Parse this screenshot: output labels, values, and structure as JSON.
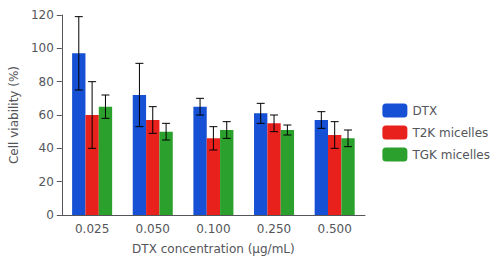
{
  "chart_data": {
    "type": "bar",
    "categories": [
      "0.025",
      "0.050",
      "0.100",
      "0.250",
      "0.500"
    ],
    "series": [
      {
        "name": "DTX",
        "color": "#1650d4",
        "values": [
          97,
          72,
          65,
          61,
          57
        ],
        "errors": [
          22,
          19,
          5,
          6,
          5
        ]
      },
      {
        "name": "T2K micelles",
        "color": "#e8211d",
        "values": [
          60,
          57,
          46,
          55,
          48
        ],
        "errors": [
          20,
          8,
          7,
          5,
          8
        ]
      },
      {
        "name": "TGK micelles",
        "color": "#2ca02c",
        "values": [
          65,
          50,
          51,
          51,
          46
        ],
        "errors": [
          7,
          5,
          5,
          3,
          5
        ]
      }
    ],
    "xlabel": "DTX concentration (μg/mL)",
    "ylabel": "Cell viability (%)",
    "ylim": [
      0,
      120
    ],
    "yticks": [
      0,
      20,
      40,
      60,
      80,
      100,
      120
    ],
    "grid": false,
    "legend": "right"
  }
}
